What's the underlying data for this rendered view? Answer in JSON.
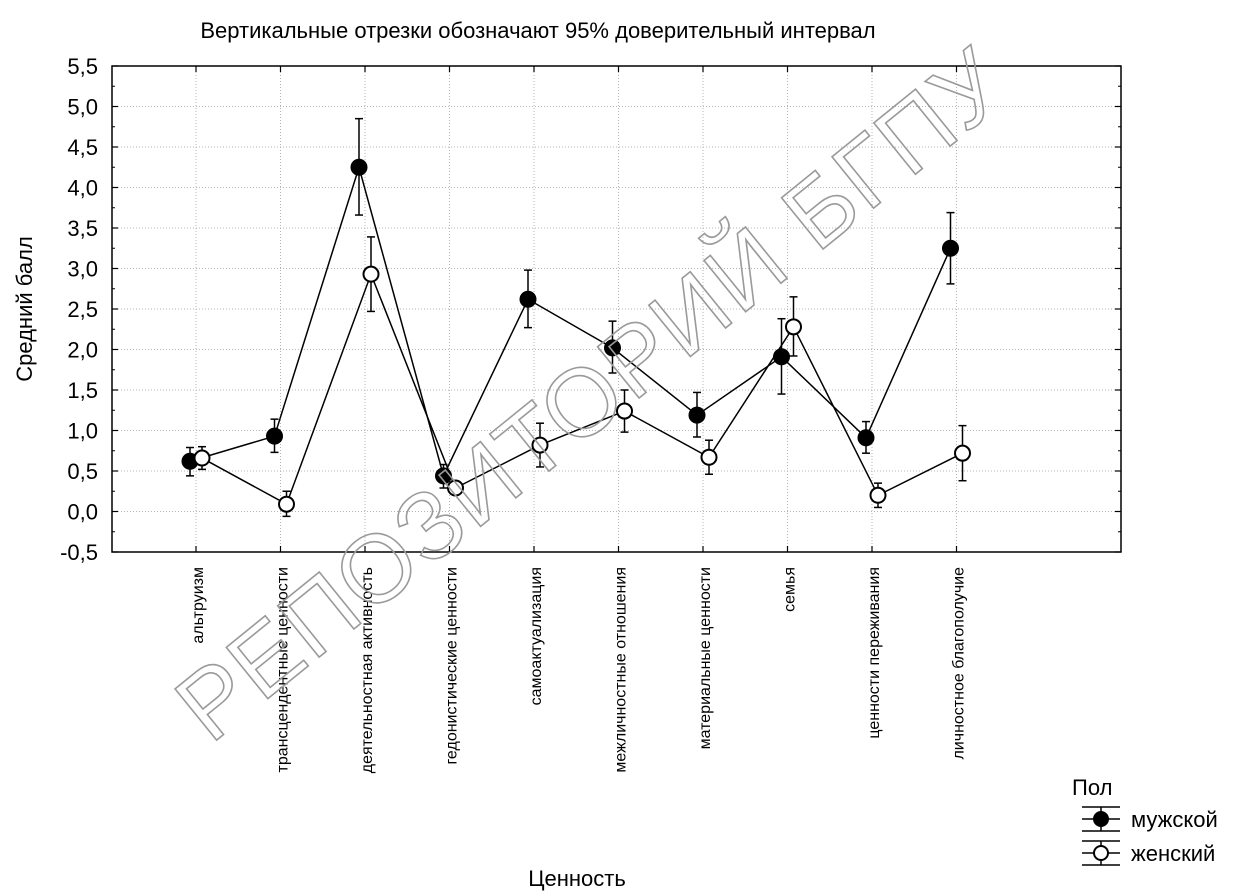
{
  "chart_data": {
    "type": "line",
    "subtitle": "Вертикальные отрезки обозначают 95% доверительный интервал",
    "xlabel": "Ценность",
    "ylabel": "Средний балл",
    "ylim": [
      -0.5,
      5.5
    ],
    "yticks": [
      "-0,5",
      "0,0",
      "0,5",
      "1,0",
      "1,5",
      "2,0",
      "2,5",
      "3,0",
      "3,5",
      "4,0",
      "4,5",
      "5,0",
      "5,5"
    ],
    "grid": true,
    "categories": [
      "альтруизм",
      "трансцендентные ценности",
      "деятельностная активность",
      "гедонистические ценности",
      "самоактуализация",
      "межличностные отношения",
      "материальные ценности",
      "семья",
      "ценности переживания",
      "личностное благополучие"
    ],
    "legend_title": "Пол",
    "legend_position": "bottom-right",
    "series": [
      {
        "name": "мужской",
        "marker": "filled",
        "values": [
          0.62,
          0.93,
          4.25,
          0.44,
          2.62,
          2.02,
          1.19,
          1.91,
          0.91,
          3.25
        ],
        "ci_low": [
          0.44,
          0.73,
          3.66,
          0.29,
          2.27,
          1.71,
          0.92,
          1.45,
          0.72,
          2.81
        ],
        "ci_high": [
          0.79,
          1.14,
          4.85,
          0.58,
          2.98,
          2.35,
          1.47,
          2.38,
          1.11,
          3.69
        ]
      },
      {
        "name": "женский",
        "marker": "open",
        "values": [
          0.66,
          0.09,
          2.93,
          0.29,
          0.82,
          1.24,
          0.67,
          2.28,
          0.2,
          0.72
        ],
        "ci_low": [
          0.52,
          -0.06,
          2.47,
          0.24,
          0.55,
          0.98,
          0.46,
          1.92,
          0.05,
          0.38
        ],
        "ci_high": [
          0.8,
          0.25,
          3.39,
          0.34,
          1.09,
          1.5,
          0.88,
          2.65,
          0.35,
          1.06
        ]
      }
    ],
    "colors": {
      "line": "#000000",
      "grid": "#b4b4b4",
      "background": "#ffffff",
      "watermark": "#9a9a9a"
    }
  },
  "watermark": "РЕПОЗИТОРИЙ БГПУ"
}
